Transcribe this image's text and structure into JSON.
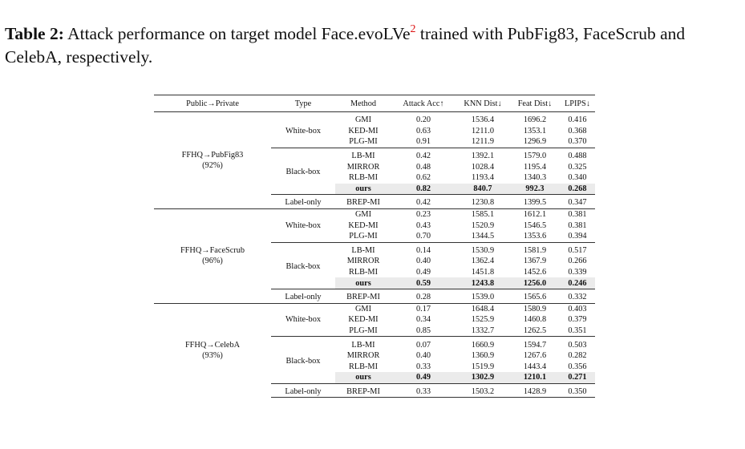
{
  "caption": {
    "label": "Table 2:",
    "text_before": "Attack performance on target model Face.evoLVe",
    "footnote": "2",
    "text_after": "trained with PubFig83, FaceScrub and CelebA, respectively."
  },
  "table": {
    "headers": [
      "Public→Private",
      "Type",
      "Method",
      "Attack Acc↑",
      "KNN Dist↓",
      "Feat Dist↓",
      "LPIPS↓"
    ],
    "groups": [
      {
        "name": "FFHQ→PubFig83",
        "pct": "(92%)",
        "white": [
          [
            "GMI",
            "0.20",
            "1536.4",
            "1696.2",
            "0.416"
          ],
          [
            "KED-MI",
            "0.63",
            "1211.0",
            "1353.1",
            "0.368"
          ],
          [
            "PLG-MI",
            "0.91",
            "1211.9",
            "1296.9",
            "0.370"
          ]
        ],
        "black": [
          [
            "LB-MI",
            "0.42",
            "1392.1",
            "1579.0",
            "0.488"
          ],
          [
            "MIRROR",
            "0.48",
            "1028.4",
            "1195.4",
            "0.325"
          ],
          [
            "RLB-MI",
            "0.62",
            "1193.4",
            "1340.3",
            "0.340"
          ],
          [
            "ours",
            "0.82",
            "840.7",
            "992.3",
            "0.268"
          ]
        ],
        "label": [
          "BREP-MI",
          "0.42",
          "1230.8",
          "1399.5",
          "0.347"
        ]
      },
      {
        "name": "FFHQ→FaceScrub",
        "pct": "(96%)",
        "white": [
          [
            "GMI",
            "0.23",
            "1585.1",
            "1612.1",
            "0.381"
          ],
          [
            "KED-MI",
            "0.43",
            "1520.9",
            "1546.5",
            "0.381"
          ],
          [
            "PLG-MI",
            "0.70",
            "1344.5",
            "1353.6",
            "0.394"
          ]
        ],
        "black": [
          [
            "LB-MI",
            "0.14",
            "1530.9",
            "1581.9",
            "0.517"
          ],
          [
            "MIRROR",
            "0.40",
            "1362.4",
            "1367.9",
            "0.266"
          ],
          [
            "RLB-MI",
            "0.49",
            "1451.8",
            "1452.6",
            "0.339"
          ],
          [
            "ours",
            "0.59",
            "1243.8",
            "1256.0",
            "0.246"
          ]
        ],
        "label": [
          "BREP-MI",
          "0.28",
          "1539.0",
          "1565.6",
          "0.332"
        ]
      },
      {
        "name": "FFHQ→CelebA",
        "pct": "(93%)",
        "white": [
          [
            "GMI",
            "0.17",
            "1648.4",
            "1580.9",
            "0.403"
          ],
          [
            "KED-MI",
            "0.34",
            "1525.9",
            "1460.8",
            "0.379"
          ],
          [
            "PLG-MI",
            "0.85",
            "1332.7",
            "1262.5",
            "0.351"
          ]
        ],
        "black": [
          [
            "LB-MI",
            "0.07",
            "1660.9",
            "1594.7",
            "0.503"
          ],
          [
            "MIRROR",
            "0.40",
            "1360.9",
            "1267.6",
            "0.282"
          ],
          [
            "RLB-MI",
            "0.33",
            "1519.9",
            "1443.4",
            "0.356"
          ],
          [
            "ours",
            "0.49",
            "1302.9",
            "1210.1",
            "0.271"
          ]
        ],
        "label": [
          "BREP-MI",
          "0.33",
          "1503.2",
          "1428.9",
          "0.350"
        ]
      }
    ],
    "type_labels": {
      "white": "White-box",
      "black": "Black-box",
      "label": "Label-only"
    }
  }
}
